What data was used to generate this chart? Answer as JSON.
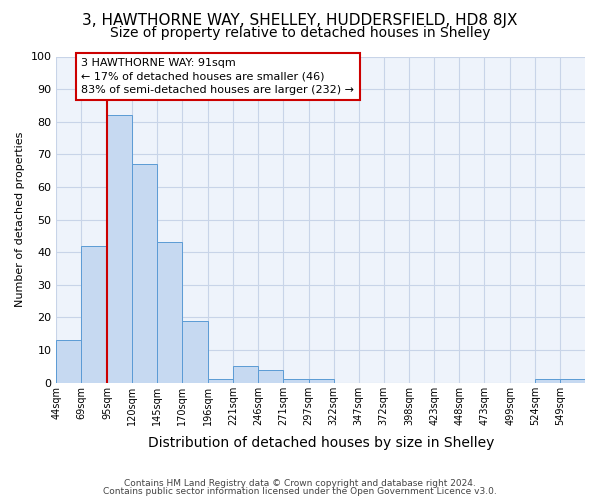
{
  "title": "3, HAWTHORNE WAY, SHELLEY, HUDDERSFIELD, HD8 8JX",
  "subtitle": "Size of property relative to detached houses in Shelley",
  "xlabel": "Distribution of detached houses by size in Shelley",
  "ylabel": "Number of detached properties",
  "footnote1": "Contains HM Land Registry data © Crown copyright and database right 2024.",
  "footnote2": "Contains public sector information licensed under the Open Government Licence v3.0.",
  "bin_labels": [
    "44sqm",
    "69sqm",
    "95sqm",
    "120sqm",
    "145sqm",
    "170sqm",
    "196sqm",
    "221sqm",
    "246sqm",
    "271sqm",
    "297sqm",
    "322sqm",
    "347sqm",
    "372sqm",
    "398sqm",
    "423sqm",
    "448sqm",
    "473sqm",
    "499sqm",
    "524sqm",
    "549sqm"
  ],
  "bar_heights": [
    13,
    42,
    82,
    67,
    43,
    19,
    1,
    5,
    4,
    1,
    1,
    0,
    0,
    0,
    0,
    0,
    0,
    0,
    0,
    1,
    1
  ],
  "bar_color": "#c6d9f1",
  "bar_edge_color": "#5b9bd5",
  "bin_edges": [
    44,
    69,
    95,
    120,
    145,
    170,
    196,
    221,
    246,
    271,
    297,
    322,
    347,
    372,
    398,
    423,
    448,
    473,
    499,
    524,
    549,
    574
  ],
  "red_line_x": 95,
  "red_line_color": "#cc0000",
  "annotation_line1": "3 HAWTHORNE WAY: 91sqm",
  "annotation_line2": "← 17% of detached houses are smaller (46)",
  "annotation_line3": "83% of semi-detached houses are larger (232) →",
  "annotation_box_color": "white",
  "annotation_box_edge_color": "#cc0000",
  "ylim": [
    0,
    100
  ],
  "yticks": [
    0,
    10,
    20,
    30,
    40,
    50,
    60,
    70,
    80,
    90,
    100
  ],
  "grid_color": "#c8d4e8",
  "background_color": "#ffffff",
  "plot_bg_color": "#eef3fb",
  "title_fontsize": 11,
  "subtitle_fontsize": 10,
  "ylabel_fontsize": 8,
  "xlabel_fontsize": 10,
  "tick_fontsize": 7,
  "annot_fontsize": 8,
  "footnote_fontsize": 6.5
}
